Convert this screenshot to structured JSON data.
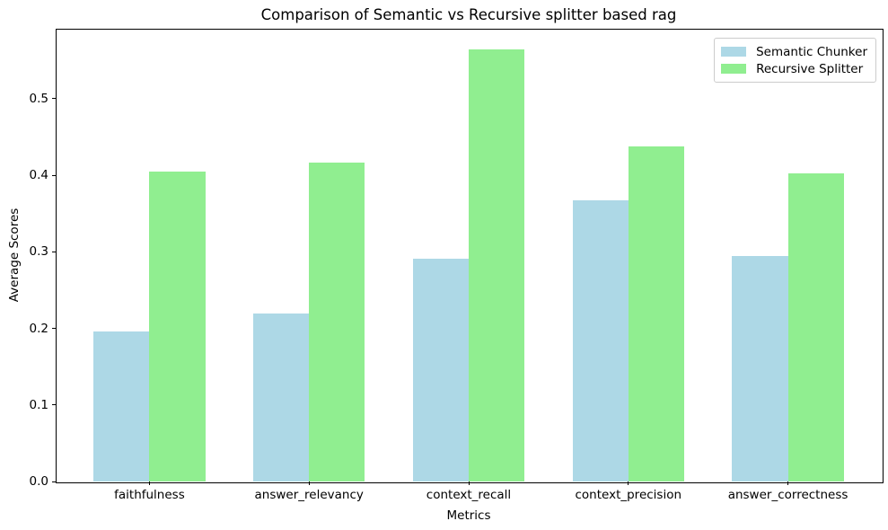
{
  "chart_data": {
    "type": "bar",
    "title": "Comparison of Semantic vs Recursive splitter based rag",
    "xlabel": "Metrics",
    "ylabel": "Average Scores",
    "categories": [
      "faithfulness",
      "answer_relevancy",
      "context_recall",
      "context_precision",
      "answer_correctness"
    ],
    "series": [
      {
        "name": "Semantic Chunker",
        "color": "#ADD8E6",
        "values": [
          0.196,
          0.219,
          0.291,
          0.367,
          0.294
        ]
      },
      {
        "name": "Recursive Splitter",
        "color": "#90EE90",
        "values": [
          0.405,
          0.417,
          0.564,
          0.438,
          0.403
        ]
      }
    ],
    "ylim": [
      0,
      0.5915
    ],
    "yticks": [
      0.0,
      0.1,
      0.2,
      0.3,
      0.4,
      0.5
    ],
    "bar_width": 0.35,
    "grid": false,
    "legend_position": "upper right"
  }
}
